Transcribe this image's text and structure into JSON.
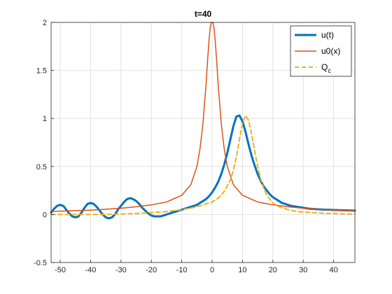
{
  "chart_data": {
    "type": "line",
    "title": "t=40",
    "xlabel": "",
    "ylabel": "",
    "xlim": [
      -53,
      47
    ],
    "ylim": [
      -0.5,
      2
    ],
    "grid": true,
    "legend_position": "top-right",
    "x_ticks": [
      -50,
      -40,
      -30,
      -20,
      -10,
      0,
      10,
      20,
      30,
      40
    ],
    "y_ticks": [
      -0.5,
      0,
      0.5,
      1,
      1.5,
      2
    ],
    "x_tick_labels": [
      "-50",
      "-40",
      "-30",
      "-20",
      "-10",
      "0",
      "10",
      "20",
      "30",
      "40"
    ],
    "y_tick_labels": [
      "-0.5",
      "0",
      "0.5",
      "1",
      "1.5",
      "2"
    ],
    "series": [
      {
        "name": "u(t)",
        "color": "#0072bd",
        "style": "solid",
        "width": 3,
        "x": [
          -53,
          -52,
          -51,
          -50,
          -49,
          -48,
          -47,
          -46,
          -45,
          -44,
          -43,
          -42,
          -41,
          -40,
          -39,
          -38,
          -37,
          -36,
          -35,
          -34,
          -33,
          -32,
          -31,
          -30,
          -29,
          -28,
          -27,
          -26,
          -25,
          -24,
          -23,
          -22,
          -21,
          -20,
          -19,
          -18,
          -17,
          -16,
          -15,
          -14,
          -13,
          -12,
          -11,
          -10,
          -9,
          -8,
          -7,
          -6,
          -5,
          -4,
          -3,
          -2,
          -1,
          0,
          1,
          2,
          3,
          4,
          5,
          6,
          7,
          8,
          9,
          10,
          11,
          12,
          13,
          14,
          15,
          16,
          17,
          18,
          19,
          20,
          21,
          22,
          23,
          24,
          25,
          26,
          27,
          28,
          29,
          30,
          31,
          32,
          33,
          34,
          35,
          36,
          37,
          38,
          39,
          40,
          41,
          42,
          43,
          44,
          45,
          46,
          47
        ],
        "y": [
          0.02,
          0.06,
          0.09,
          0.1,
          0.09,
          0.05,
          0.01,
          -0.02,
          -0.03,
          -0.02,
          0.02,
          0.07,
          0.11,
          0.12,
          0.11,
          0.08,
          0.04,
          0.0,
          -0.03,
          -0.04,
          -0.03,
          0.0,
          0.05,
          0.09,
          0.13,
          0.16,
          0.17,
          0.16,
          0.14,
          0.11,
          0.07,
          0.04,
          0.01,
          -0.01,
          -0.02,
          -0.02,
          -0.02,
          -0.01,
          0.0,
          0.01,
          0.02,
          0.03,
          0.04,
          0.05,
          0.06,
          0.07,
          0.08,
          0.09,
          0.1,
          0.12,
          0.14,
          0.16,
          0.19,
          0.23,
          0.28,
          0.34,
          0.42,
          0.52,
          0.64,
          0.78,
          0.92,
          1.02,
          1.03,
          0.97,
          0.86,
          0.73,
          0.61,
          0.51,
          0.42,
          0.35,
          0.29,
          0.25,
          0.21,
          0.18,
          0.16,
          0.14,
          0.12,
          0.11,
          0.1,
          0.09,
          0.085,
          0.08,
          0.075,
          0.07,
          0.065,
          0.06,
          0.058,
          0.056,
          0.054,
          0.052,
          0.05,
          0.049,
          0.048,
          0.047,
          0.046,
          0.045,
          0.044,
          0.043,
          0.042,
          0.041,
          0.04
        ]
      },
      {
        "name": "u0(x)",
        "color": "#d95319",
        "style": "solid",
        "width": 1.5,
        "x": [
          -53,
          -50,
          -45,
          -40,
          -35,
          -30,
          -25,
          -20,
          -15,
          -10,
          -7,
          -5,
          -4,
          -3,
          -2,
          -1.5,
          -1,
          -0.6,
          -0.3,
          0,
          0.3,
          0.6,
          1,
          1.5,
          2,
          3,
          4,
          5,
          7,
          10,
          15,
          20,
          25,
          30,
          35,
          40,
          45,
          47
        ],
        "y": [
          0.03,
          0.035,
          0.04,
          0.045,
          0.055,
          0.065,
          0.08,
          0.1,
          0.13,
          0.2,
          0.31,
          0.5,
          0.68,
          0.95,
          1.35,
          1.6,
          1.82,
          1.95,
          2.0,
          2.0,
          2.0,
          1.95,
          1.82,
          1.6,
          1.35,
          0.95,
          0.68,
          0.5,
          0.31,
          0.2,
          0.13,
          0.1,
          0.08,
          0.065,
          0.055,
          0.045,
          0.04,
          0.038
        ]
      },
      {
        "name": "Q_c",
        "color": "#edb120",
        "style": "dashed",
        "width": 2,
        "x": [
          -53,
          -45,
          -40,
          -35,
          -30,
          -25,
          -20,
          -15,
          -10,
          -5,
          0,
          2,
          4,
          6,
          7,
          8,
          9,
          10,
          11,
          12,
          13,
          14,
          15,
          16,
          17,
          18,
          20,
          22,
          25,
          28,
          30,
          35,
          40,
          45,
          47
        ],
        "y": [
          0.0,
          0.0,
          0.0,
          0.0,
          0.005,
          0.01,
          0.02,
          0.03,
          0.05,
          0.08,
          0.13,
          0.17,
          0.24,
          0.36,
          0.46,
          0.6,
          0.78,
          0.95,
          1.03,
          0.98,
          0.84,
          0.66,
          0.5,
          0.37,
          0.27,
          0.2,
          0.12,
          0.08,
          0.05,
          0.03,
          0.025,
          0.015,
          0.01,
          0.005,
          0.004
        ]
      }
    ]
  }
}
